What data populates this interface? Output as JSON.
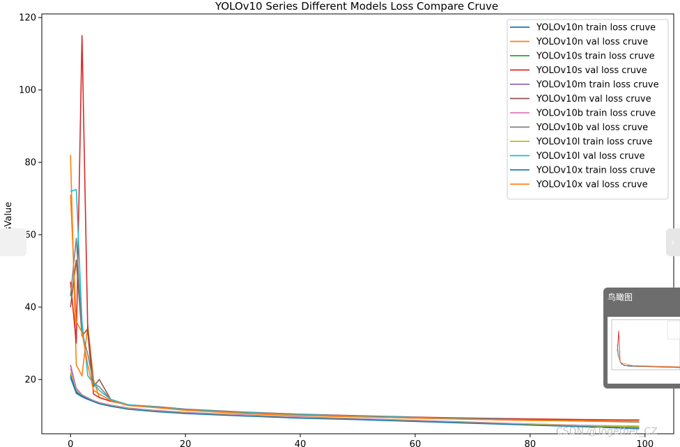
{
  "chart_data": {
    "type": "line",
    "title": "YOLOv10 Series Different Models Loss Compare Cruve",
    "xlabel": "",
    "ylabel": "LossValue",
    "xlim": [
      -5,
      105
    ],
    "ylim": [
      5,
      121
    ],
    "xticks": [
      0,
      20,
      40,
      60,
      80,
      100
    ],
    "yticks": [
      20,
      40,
      60,
      80,
      100,
      120
    ],
    "grid": false,
    "legend_position": "top-right",
    "series": [
      {
        "name": "YOLOv10n train loss cruve",
        "color": "#1f77b4",
        "x": [
          0,
          1,
          2,
          3,
          4,
          5,
          7,
          10,
          15,
          20,
          30,
          40,
          50,
          60,
          70,
          80,
          90,
          99
        ],
        "y": [
          20.5,
          16.2,
          15.2,
          14.5,
          13.9,
          13.3,
          12.6,
          11.9,
          11.2,
          10.7,
          10.0,
          9.4,
          9.0,
          8.5,
          8.0,
          7.5,
          7.0,
          6.4
        ]
      },
      {
        "name": "YOLOv10n val loss cruve",
        "color": "#ff7f0e",
        "x": [
          0,
          1,
          2,
          3,
          4,
          5,
          7,
          10,
          15,
          20,
          30,
          40,
          50,
          60,
          70,
          80,
          90,
          99
        ],
        "y": [
          82,
          24,
          21,
          35,
          20,
          15,
          14,
          13,
          12.2,
          11.5,
          10.6,
          10.0,
          9.7,
          9.3,
          9.0,
          8.7,
          8.5,
          8.2
        ]
      },
      {
        "name": "YOLOv10s train loss cruve",
        "color": "#2ca02c",
        "x": [
          0,
          1,
          2,
          3,
          4,
          5,
          7,
          10,
          15,
          20,
          30,
          40,
          50,
          60,
          70,
          80,
          90,
          99
        ],
        "y": [
          21.5,
          16.8,
          15.6,
          14.8,
          14.1,
          13.5,
          12.8,
          12.0,
          11.3,
          10.8,
          10.1,
          9.5,
          9.1,
          8.6,
          8.1,
          7.6,
          7.2,
          6.8
        ]
      },
      {
        "name": "YOLOv10s val loss cruve",
        "color": "#d62728",
        "x": [
          0,
          1,
          2,
          3,
          4,
          5,
          7,
          10,
          15,
          20,
          30,
          40,
          50,
          60,
          70,
          80,
          90,
          99
        ],
        "y": [
          47,
          30,
          115,
          33,
          16,
          15,
          14,
          13,
          12.5,
          11.8,
          11.0,
          10.4,
          10.0,
          9.6,
          9.3,
          9.1,
          8.9,
          8.8
        ]
      },
      {
        "name": "YOLOv10m train loss cruve",
        "color": "#9467bd",
        "x": [
          0,
          1,
          2,
          3,
          4,
          5,
          7,
          10,
          15,
          20,
          30,
          40,
          50,
          60,
          70,
          80,
          90,
          99
        ],
        "y": [
          24,
          17.5,
          15.8,
          14.9,
          14.2,
          13.6,
          12.9,
          12.1,
          11.4,
          10.9,
          10.2,
          9.6,
          9.2,
          8.7,
          8.2,
          7.7,
          7.3,
          7.0
        ]
      },
      {
        "name": "YOLOv10m val loss cruve",
        "color": "#8c564b",
        "x": [
          0,
          1,
          2,
          3,
          4,
          5,
          7,
          10,
          15,
          20,
          30,
          40,
          50,
          60,
          70,
          80,
          90,
          99
        ],
        "y": [
          40,
          53,
          32,
          34,
          18,
          20,
          14.5,
          13,
          12.4,
          11.7,
          10.9,
          10.3,
          9.9,
          9.5,
          9.2,
          8.9,
          8.6,
          8.4
        ]
      },
      {
        "name": "YOLOv10b train loss cruve",
        "color": "#e377c2",
        "x": [
          0,
          1,
          2,
          3,
          4,
          5,
          7,
          10,
          15,
          20,
          30,
          40,
          50,
          60,
          70,
          80,
          90,
          99
        ],
        "y": [
          23,
          17.2,
          15.7,
          14.8,
          14.1,
          13.5,
          12.8,
          12.0,
          11.3,
          10.8,
          10.1,
          9.5,
          9.1,
          8.6,
          8.1,
          7.7,
          7.3,
          7.1
        ]
      },
      {
        "name": "YOLOv10b val loss cruve",
        "color": "#7f7f7f",
        "x": [
          0,
          1,
          2,
          3,
          4,
          5,
          7,
          10,
          15,
          20,
          30,
          40,
          50,
          60,
          70,
          80,
          90,
          99
        ],
        "y": [
          43,
          59,
          33,
          27,
          19,
          18,
          14.5,
          13,
          12.3,
          11.6,
          10.8,
          10.2,
          9.8,
          9.4,
          9.1,
          8.8,
          8.5,
          8.3
        ]
      },
      {
        "name": "YOLOv10l train loss cruve",
        "color": "#bcbd22",
        "x": [
          0,
          1,
          2,
          3,
          4,
          5,
          7,
          10,
          15,
          20,
          30,
          40,
          50,
          60,
          70,
          80,
          90,
          99
        ],
        "y": [
          22,
          16.9,
          15.6,
          14.7,
          14.0,
          13.4,
          12.7,
          11.9,
          11.2,
          10.7,
          10.0,
          9.4,
          9.0,
          8.5,
          8.0,
          7.6,
          7.2,
          7.0
        ]
      },
      {
        "name": "YOLOv10l val loss cruve",
        "color": "#17becf",
        "x": [
          0,
          1,
          2,
          3,
          4,
          5,
          7,
          10,
          15,
          20,
          30,
          40,
          50,
          60,
          70,
          80,
          90,
          99
        ],
        "y": [
          72,
          72.5,
          36,
          21,
          19,
          17,
          14.5,
          13,
          12.4,
          11.7,
          10.9,
          10.3,
          9.9,
          9.5,
          9.1,
          8.8,
          8.5,
          8.3
        ]
      },
      {
        "name": "YOLOv10x train loss cruve",
        "color": "#1f77b4",
        "x": [
          0,
          1,
          2,
          3,
          4,
          5,
          7,
          10,
          15,
          20,
          30,
          40,
          50,
          60,
          70,
          80,
          90,
          99
        ],
        "y": [
          21,
          16.5,
          15.4,
          14.6,
          13.9,
          13.3,
          12.6,
          11.8,
          11.1,
          10.6,
          9.9,
          9.3,
          8.9,
          8.4,
          7.9,
          7.4,
          6.9,
          6.4
        ]
      },
      {
        "name": "YOLOv10x val loss cruve",
        "color": "#ff7f0e",
        "x": [
          0,
          1,
          2,
          3,
          4,
          5,
          7,
          10,
          15,
          20,
          30,
          40,
          50,
          60,
          70,
          80,
          90,
          99
        ],
        "y": [
          71,
          36,
          33,
          24,
          17,
          16,
          14.2,
          12.8,
          12.2,
          11.5,
          10.7,
          10.1,
          9.7,
          9.3,
          9.0,
          8.7,
          8.6,
          8.4
        ]
      }
    ]
  },
  "overview_panel": {
    "title": "鸟瞰图",
    "next_arrow": "›"
  },
  "watermark": "CSDN @Together_CZ"
}
